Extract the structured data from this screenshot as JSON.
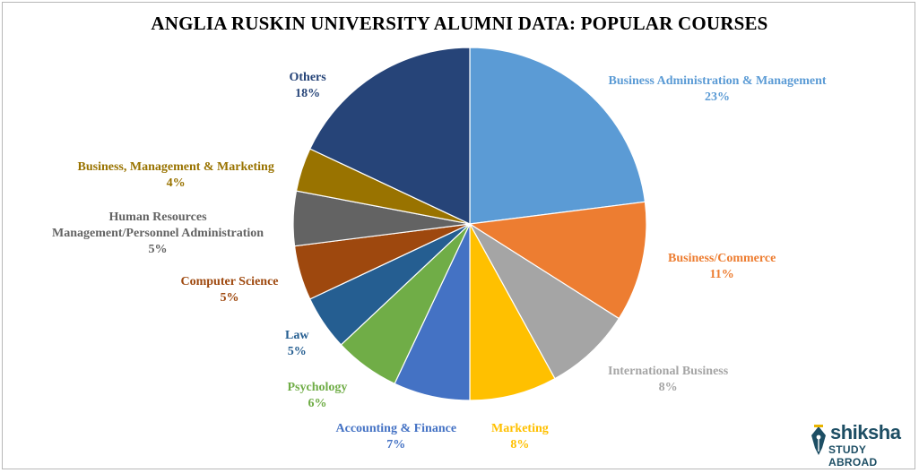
{
  "chart_data": {
    "type": "pie",
    "title": "ANGLIA RUSKIN UNIVERSITY ALUMNI DATA: POPULAR COURSES",
    "slices": [
      {
        "label": [
          "Business Administration  & Management"
        ],
        "value": 23,
        "pct": "23%",
        "color": "#5b9bd5",
        "textColor": "#5b9bd5"
      },
      {
        "label": [
          "Business/Commerce"
        ],
        "value": 11,
        "pct": "11%",
        "color": "#ed7d31",
        "textColor": "#ed7d31"
      },
      {
        "label": [
          "International  Business"
        ],
        "value": 8,
        "pct": "8%",
        "color": "#a5a5a5",
        "textColor": "#a5a5a5"
      },
      {
        "label": [
          "Marketing"
        ],
        "value": 8,
        "pct": "8%",
        "color": "#ffc000",
        "textColor": "#ffc000"
      },
      {
        "label": [
          "Accounting  & Finance"
        ],
        "value": 7,
        "pct": "7%",
        "color": "#4472c4",
        "textColor": "#4472c4"
      },
      {
        "label": [
          "Psychology"
        ],
        "value": 6,
        "pct": "6%",
        "color": "#70ad47",
        "textColor": "#70ad47"
      },
      {
        "label": [
          "Law"
        ],
        "value": 5,
        "pct": "5%",
        "color": "#255e91",
        "textColor": "#255e91"
      },
      {
        "label": [
          "Computer  Science"
        ],
        "value": 5,
        "pct": "5%",
        "color": "#9e480e",
        "textColor": "#9e480e"
      },
      {
        "label": [
          "Human  Resources",
          "Management/Personnel Administration"
        ],
        "value": 5,
        "pct": "5%",
        "color": "#636363",
        "textColor": "#636363"
      },
      {
        "label": [
          "Business, Management & Marketing"
        ],
        "value": 4,
        "pct": "4%",
        "color": "#997300",
        "textColor": "#997300"
      },
      {
        "label": [
          "Others"
        ],
        "value": 18,
        "pct": "18%",
        "color": "#264478",
        "textColor": "#264478"
      }
    ],
    "legend": "none"
  },
  "watermark": {
    "brand": "shiksha",
    "tagline": "STUDY ABROAD",
    "color": "#1d4e64"
  }
}
